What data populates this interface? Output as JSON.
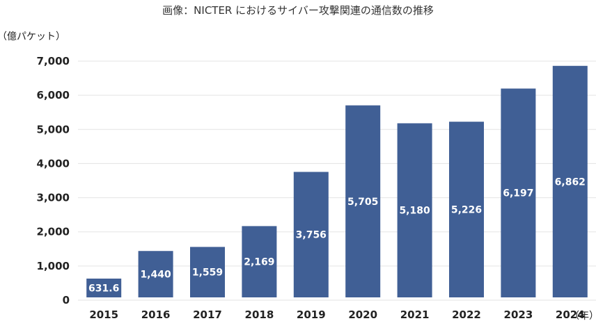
{
  "chart_data": {
    "type": "bar",
    "title": "画像：NICTER におけるサイバー攻撃関連の通信数の推移",
    "ylabel": "（億パケット）",
    "xlabel": "（年）",
    "categories": [
      "2015",
      "2016",
      "2017",
      "2018",
      "2019",
      "2020",
      "2021",
      "2022",
      "2023",
      "2024"
    ],
    "values": [
      631.6,
      1440,
      1559,
      2169,
      3756,
      5705,
      5180,
      5226,
      6197,
      6862
    ],
    "value_labels": [
      "631.6",
      "1,440",
      "1,559",
      "2,169",
      "3,756",
      "5,705",
      "5,180",
      "5,226",
      "6,197",
      "6,862"
    ],
    "ylim": [
      0,
      7000
    ],
    "yticks": [
      0,
      1000,
      2000,
      3000,
      4000,
      5000,
      6000,
      7000
    ],
    "ytick_labels": [
      "0",
      "1,000",
      "2,000",
      "3,000",
      "4,000",
      "5,000",
      "6,000",
      "7,000"
    ],
    "grid": true,
    "legend": "none",
    "bar_color": "#405f95",
    "grid_color": "#e3e3e3"
  }
}
